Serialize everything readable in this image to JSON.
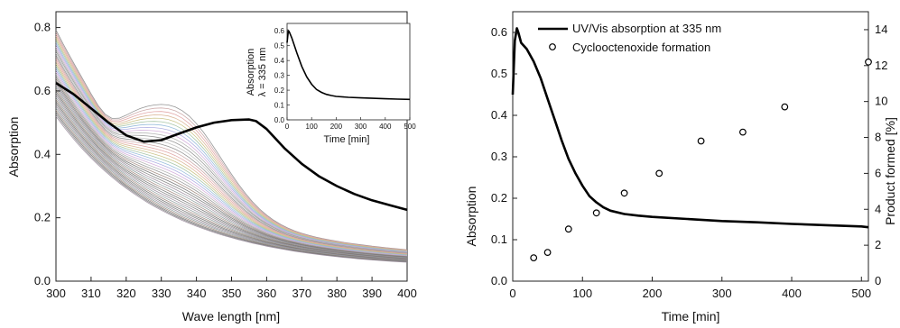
{
  "chart_data": [
    {
      "type": "line",
      "xlabel": "Wave length [nm]",
      "ylabel": "Absorption",
      "xlim": [
        300,
        400
      ],
      "ylim": [
        0.0,
        0.85
      ],
      "xticks": [
        "300",
        "310",
        "320",
        "330",
        "340",
        "350",
        "360",
        "370",
        "380",
        "390",
        "400"
      ],
      "yticks": [
        "0.0",
        "0.2",
        "0.4",
        "0.6",
        "0.8"
      ],
      "grid": false,
      "highlight_series": {
        "x": [
          300,
          305,
          310,
          315,
          320,
          325,
          330,
          335,
          340,
          345,
          350,
          355,
          357,
          360,
          365,
          370,
          375,
          380,
          385,
          390,
          395,
          400
        ],
        "values": [
          0.625,
          0.59,
          0.545,
          0.5,
          0.46,
          0.44,
          0.445,
          0.465,
          0.485,
          0.5,
          0.508,
          0.51,
          0.505,
          0.48,
          0.42,
          0.37,
          0.33,
          0.3,
          0.275,
          0.255,
          0.24,
          0.225
        ]
      },
      "inset": {
        "type": "line",
        "xlabel": "Time [min]",
        "ylabel_lines": [
          "Absorption",
          "λ = 335 nm"
        ],
        "xlim": [
          0,
          500
        ],
        "ylim": [
          0.0,
          0.65
        ],
        "xticks": [
          "0",
          "100",
          "200",
          "300",
          "400",
          "500"
        ],
        "yticks": [
          "0.0",
          "0.1",
          "0.2",
          "0.3",
          "0.4",
          "0.5",
          "0.6"
        ],
        "x": [
          0,
          5,
          10,
          20,
          40,
          60,
          80,
          100,
          120,
          140,
          160,
          180,
          200,
          250,
          300,
          350,
          400,
          450,
          500
        ],
        "values": [
          0.52,
          0.6,
          0.59,
          0.55,
          0.45,
          0.36,
          0.29,
          0.24,
          0.205,
          0.185,
          0.172,
          0.164,
          0.158,
          0.152,
          0.148,
          0.145,
          0.142,
          0.14,
          0.138
        ]
      }
    },
    {
      "type": "line",
      "xlabel": "Time [min]",
      "ylabel": "Absorption",
      "ylabel_right": "Product formed [%]",
      "xlim": [
        0,
        510
      ],
      "ylim": [
        0.0,
        0.65
      ],
      "ylim_right": [
        0,
        15
      ],
      "xticks": [
        "0",
        "100",
        "200",
        "300",
        "400",
        "500"
      ],
      "yticks": [
        "0.0",
        "0.1",
        "0.2",
        "0.3",
        "0.4",
        "0.5",
        "0.6"
      ],
      "yticks_right": [
        "0",
        "2",
        "4",
        "6",
        "8",
        "10",
        "12",
        "14"
      ],
      "legend_position": "top",
      "series": [
        {
          "name": "UV/Vis absorption at 335 nm",
          "style": "line",
          "x": [
            0,
            3,
            6,
            8,
            12,
            20,
            30,
            40,
            50,
            60,
            70,
            80,
            90,
            100,
            110,
            120,
            130,
            140,
            160,
            180,
            200,
            250,
            300,
            350,
            400,
            450,
            500,
            510
          ],
          "values": [
            0.45,
            0.58,
            0.61,
            0.6,
            0.575,
            0.56,
            0.53,
            0.49,
            0.44,
            0.39,
            0.34,
            0.295,
            0.26,
            0.23,
            0.205,
            0.19,
            0.178,
            0.17,
            0.162,
            0.158,
            0.155,
            0.15,
            0.145,
            0.142,
            0.138,
            0.135,
            0.132,
            0.13
          ]
        },
        {
          "name": "Cyclooctenoxide formation",
          "style": "scatter",
          "axis": "right",
          "x": [
            30,
            50,
            80,
            120,
            160,
            210,
            270,
            330,
            390,
            510
          ],
          "values": [
            1.3,
            1.6,
            2.9,
            3.8,
            4.9,
            6.0,
            7.8,
            8.3,
            9.7,
            12.2
          ]
        }
      ]
    }
  ]
}
